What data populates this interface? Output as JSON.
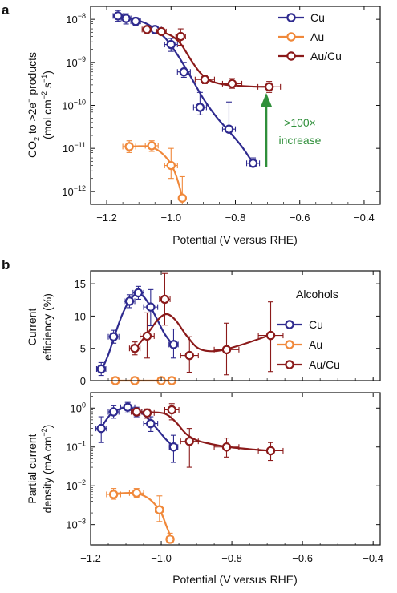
{
  "colors": {
    "Cu": "#2e2a8f",
    "Au": "#f0883a",
    "AuCu": "#8b1a1a",
    "annotation": "#2f8f3a"
  },
  "chart_data": [
    {
      "panel": "a",
      "type": "scatter",
      "xlabel": "Potential (V versus RHE)",
      "ylabel": "CO2 to >2e− products (mol cm−2 s−1)",
      "ylabel_parts": [
        "CO",
        "2",
        " to >2e",
        "−",
        " products",
        "(mol cm",
        "−2",
        " s",
        "−1",
        ")"
      ],
      "xlim": [
        -1.25,
        -0.35
      ],
      "ylim": [
        5e-13,
        2e-08
      ],
      "yscale": "log",
      "xticks": [
        -1.2,
        -1.0,
        -0.8,
        -0.6,
        -0.4
      ],
      "xtick_labels": [
        "−1.2",
        "−1.0",
        "−0.8",
        "−0.6",
        "−0.4"
      ],
      "yticks": [
        1e-12,
        1e-11,
        1e-10,
        1e-09,
        1e-08
      ],
      "ytick_labels": [
        [
          "10",
          "−12"
        ],
        [
          "10",
          "−11"
        ],
        [
          "10",
          "−10"
        ],
        [
          "10",
          "−9"
        ],
        [
          "10",
          "−8"
        ]
      ],
      "legend_position": "top-right",
      "annotation": {
        "text_line1": ">100×",
        "text_line2": "increase"
      },
      "series": [
        {
          "name": "Cu",
          "color_key": "Cu",
          "x": [
            -1.165,
            -1.14,
            -1.11,
            -1.05,
            -1.0,
            -0.96,
            -0.91,
            -0.82,
            -0.745
          ],
          "y": [
            1.2e-08,
            1.05e-08,
            9e-09,
            5.8e-09,
            2.6e-09,
            6e-10,
            9e-11,
            2.8e-11,
            4.5e-12
          ],
          "yerr_lo": [
            9e-09,
            7.8e-09,
            7.3e-09,
            4.6e-09,
            1.8e-09,
            4.5e-10,
            6e-11,
            2.75e-11,
            4.5e-12
          ],
          "yerr_hi": [
            1.6e-08,
            1.35e-08,
            1.1e-08,
            7e-09,
            3.6e-09,
            1e-09,
            2e-10,
            1.2e-10,
            6e-12
          ],
          "xerr": [
            0.015,
            0.015,
            0.015,
            0.02,
            0.02,
            0.02,
            0.02,
            0.02,
            0.02
          ]
        },
        {
          "name": "Au",
          "color_key": "Au",
          "x": [
            -1.13,
            -1.06,
            -1.0,
            -0.965
          ],
          "y": [
            1.1e-11,
            1.15e-11,
            4e-12,
            7e-13
          ],
          "yerr_lo": [
            8e-12,
            8.5e-12,
            2e-12,
            5e-13
          ],
          "yerr_hi": [
            1.5e-11,
            1.5e-11,
            1e-11,
            2.2e-12
          ],
          "xerr": [
            0.02,
            0.02,
            0.02,
            0.01
          ]
        },
        {
          "name": "Au/Cu",
          "color_key": "AuCu",
          "x": [
            -1.075,
            -1.03,
            -0.97,
            -0.895,
            -0.81,
            -0.695
          ],
          "y": [
            5.8e-09,
            5.2e-09,
            4e-09,
            4e-10,
            3.2e-10,
            2.7e-10
          ],
          "yerr_lo": [
            5e-09,
            4.5e-09,
            2.5e-09,
            3.2e-10,
            2.5e-10,
            2e-10
          ],
          "yerr_hi": [
            6.8e-09,
            6e-09,
            6e-09,
            5e-10,
            4.2e-10,
            3.6e-10
          ],
          "xerr": [
            0.015,
            0.015,
            0.015,
            0.03,
            0.03,
            0.035
          ]
        }
      ],
      "fits": [
        {
          "color_key": "Cu",
          "x": [
            -1.17,
            -1.12,
            -1.07,
            -1.02,
            -0.98,
            -0.94,
            -0.9,
            -0.86,
            -0.82,
            -0.78,
            -0.745
          ],
          "y": [
            1.2e-08,
            1.02e-08,
            7.5e-09,
            3.8e-09,
            1.5e-09,
            4.8e-10,
            1.45e-10,
            5.5e-11,
            2.5e-11,
            1.1e-11,
            4.5e-12
          ]
        },
        {
          "color_key": "Au",
          "x": [
            -1.14,
            -1.1,
            -1.07,
            -1.04,
            -1.01,
            -0.99,
            -0.975,
            -0.965
          ],
          "y": [
            1.08e-11,
            1.12e-11,
            1.1e-11,
            9e-12,
            5.5e-12,
            3e-12,
            1.4e-12,
            7e-13
          ]
        },
        {
          "color_key": "AuCu",
          "x": [
            -1.08,
            -1.04,
            -1.0,
            -0.97,
            -0.94,
            -0.91,
            -0.88,
            -0.84,
            -0.8,
            -0.75,
            -0.7
          ],
          "y": [
            5.9e-09,
            5.3e-09,
            4.2e-09,
            2.7e-09,
            1.2e-09,
            5.8e-10,
            3.8e-10,
            3.1e-10,
            2.9e-10,
            2.75e-10,
            2.7e-10
          ]
        }
      ]
    },
    {
      "panel": "b-top",
      "type": "scatter",
      "ylabel": "Current efficiency (%)",
      "ylabel_lines": [
        "Current",
        "efficiency (%)"
      ],
      "xlim": [
        -1.2,
        -0.38
      ],
      "ylim": [
        0,
        17
      ],
      "yscale": "linear",
      "xticks": [
        -1.2,
        -1.0,
        -0.8,
        -0.6,
        -0.4
      ],
      "yticks": [
        0,
        5,
        10,
        15
      ],
      "ytick_labels": [
        "0",
        "5",
        "10",
        "15"
      ],
      "legend_title": "Alcohols",
      "legend_position": "right",
      "series": [
        {
          "name": "Cu",
          "color_key": "Cu",
          "x": [
            -1.17,
            -1.135,
            -1.09,
            -1.065,
            -1.03,
            -0.965
          ],
          "y": [
            1.8,
            6.8,
            12.3,
            13.6,
            11.4,
            5.6
          ],
          "yerr_lo": [
            0.8,
            5.8,
            11.3,
            12.6,
            8.5,
            3.5
          ],
          "yerr_hi": [
            2.8,
            7.8,
            13.3,
            14.6,
            14.1,
            8
          ],
          "xerr": [
            0.013,
            0.015,
            0.015,
            0.015,
            0.02,
            0.013
          ]
        },
        {
          "name": "Au",
          "color_key": "Au",
          "x": [
            -1.13,
            -1.075,
            -1.0,
            -0.97
          ],
          "y": [
            0,
            0,
            0,
            0
          ],
          "yerr_lo": [
            0,
            0,
            0,
            0
          ],
          "yerr_hi": [
            0,
            0,
            0,
            0
          ],
          "xerr": [
            0.01,
            0.01,
            0.01,
            0.01
          ]
        },
        {
          "name": "Au/Cu",
          "color_key": "AuCu",
          "x": [
            -1.075,
            -1.04,
            -0.99,
            -0.92,
            -0.815,
            -0.69
          ],
          "y": [
            5,
            6.9,
            12.6,
            3.9,
            4.8,
            7
          ],
          "yerr_lo": [
            4,
            3.5,
            8.6,
            1.3,
            0.9,
            1.4
          ],
          "yerr_hi": [
            6,
            10.5,
            16.6,
            6.8,
            8.9,
            12.2
          ],
          "xerr": [
            0.015,
            0.02,
            0.015,
            0.025,
            0.035,
            0.035
          ]
        }
      ],
      "fits": [
        {
          "color_key": "Cu",
          "x": [
            -1.17,
            -1.15,
            -1.13,
            -1.11,
            -1.09,
            -1.07,
            -1.05,
            -1.03,
            -1.01,
            -0.99,
            -0.965
          ],
          "y": [
            1.5,
            4.0,
            7.3,
            10.3,
            12.4,
            13.4,
            13.0,
            11.4,
            9.3,
            7.2,
            5.4
          ]
        },
        {
          "color_key": "Au",
          "x": [
            -1.14,
            -0.96
          ],
          "y": [
            0,
            0
          ]
        },
        {
          "color_key": "AuCu",
          "x": [
            -1.07,
            -1.04,
            -1.01,
            -0.985,
            -0.96,
            -0.93,
            -0.9,
            -0.87,
            -0.83,
            -0.77,
            -0.69
          ],
          "y": [
            5.2,
            7.2,
            9.4,
            10.3,
            9.4,
            7.1,
            5.2,
            4.6,
            4.7,
            5.6,
            7.1
          ]
        }
      ]
    },
    {
      "panel": "b-bottom",
      "type": "scatter",
      "xlabel": "Potential (V versus RHE)",
      "ylabel": "Partial current density (mA cm−2)",
      "ylabel_parts": [
        "Partial current",
        "density (mA cm",
        "−2",
        ")"
      ],
      "xlim": [
        -1.2,
        -0.38
      ],
      "ylim": [
        0.0003,
        2.5
      ],
      "yscale": "log",
      "xticks": [
        -1.2,
        -1.0,
        -0.8,
        -0.6,
        -0.4
      ],
      "xtick_labels": [
        "−1.2",
        "−1.0",
        "−0.8",
        "−0.6",
        "−0.4"
      ],
      "yticks": [
        0.001,
        0.01,
        0.1,
        1
      ],
      "ytick_labels": [
        [
          "10",
          "−3"
        ],
        [
          "10",
          "−2"
        ],
        [
          "10",
          "−1"
        ],
        [
          "10",
          "0"
        ]
      ],
      "series": [
        {
          "name": "Cu",
          "color_key": "Cu",
          "x": [
            -1.17,
            -1.135,
            -1.095,
            -1.07,
            -1.03,
            -0.965
          ],
          "y": [
            0.3,
            0.8,
            1.05,
            0.8,
            0.4,
            0.1
          ],
          "yerr_lo": [
            0.13,
            0.55,
            0.75,
            0.6,
            0.25,
            0.04
          ],
          "yerr_hi": [
            0.6,
            1.15,
            1.4,
            1.05,
            0.6,
            0.2
          ],
          "xerr": [
            0.015,
            0.015,
            0.02,
            0.015,
            0.02,
            0.012
          ]
        },
        {
          "name": "Au",
          "color_key": "Au",
          "x": [
            -1.135,
            -1.07,
            -1.005,
            -0.975
          ],
          "y": [
            0.006,
            0.0065,
            0.0024,
            0.00042
          ],
          "yerr_lo": [
            0.0045,
            0.005,
            0.0012,
            0.00035
          ],
          "yerr_hi": [
            0.0085,
            0.0085,
            0.0055,
            0.0006
          ],
          "xerr": [
            0.02,
            0.02,
            0.012,
            0.01
          ]
        },
        {
          "name": "Au/Cu",
          "color_key": "AuCu",
          "x": [
            -1.07,
            -1.04,
            -0.97,
            -0.92,
            -0.815,
            -0.69
          ],
          "y": [
            0.8,
            0.75,
            0.9,
            0.14,
            0.1,
            0.08
          ],
          "yerr_lo": [
            0.65,
            0.55,
            0.5,
            0.03,
            0.055,
            0.045
          ],
          "yerr_hi": [
            0.95,
            0.95,
            1.3,
            0.3,
            0.17,
            0.13
          ],
          "xerr": [
            0.015,
            0.02,
            0.02,
            0.025,
            0.035,
            0.035
          ]
        }
      ],
      "fits": [
        {
          "color_key": "Cu",
          "x": [
            -1.17,
            -1.14,
            -1.11,
            -1.09,
            -1.07,
            -1.05,
            -1.03,
            -1.01,
            -0.99,
            -0.965
          ],
          "y": [
            0.32,
            0.75,
            0.98,
            1.0,
            0.9,
            0.68,
            0.45,
            0.28,
            0.17,
            0.1
          ]
        },
        {
          "color_key": "Au",
          "x": [
            -1.14,
            -1.1,
            -1.07,
            -1.04,
            -1.02,
            -1.0,
            -0.985,
            -0.97
          ],
          "y": [
            0.0062,
            0.0065,
            0.0064,
            0.005,
            0.0035,
            0.002,
            0.0009,
            0.00042
          ]
        },
        {
          "color_key": "AuCu",
          "x": [
            -1.07,
            -1.03,
            -0.99,
            -0.96,
            -0.93,
            -0.9,
            -0.86,
            -0.81,
            -0.75,
            -0.69
          ],
          "y": [
            0.8,
            0.78,
            0.72,
            0.45,
            0.22,
            0.15,
            0.12,
            0.1,
            0.088,
            0.08
          ]
        }
      ]
    }
  ]
}
